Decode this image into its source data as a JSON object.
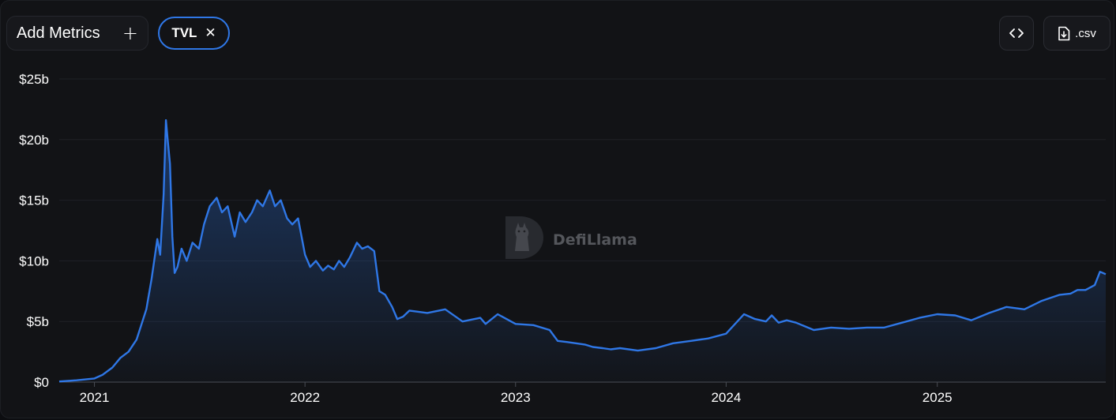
{
  "toolbar": {
    "add_metrics_label": "Add Metrics",
    "add_icon": "plus-icon",
    "metric_chip_label": "TVL",
    "remove_icon": "close-icon",
    "embed_icon": "code-icon",
    "csv_label": ".csv",
    "csv_icon": "file-download-icon"
  },
  "watermark": {
    "text": "DefiLlama",
    "icon": "llama-logo-icon"
  },
  "colors": {
    "line": "#2f77e6",
    "background": "#121316"
  },
  "chart_data": {
    "type": "area",
    "title": "",
    "xlabel": "",
    "ylabel": "",
    "ylim": [
      0,
      25
    ],
    "yunit": "billions USD",
    "yticks": [
      0,
      5,
      10,
      15,
      20,
      25
    ],
    "ytick_labels": [
      "$0",
      "$5b",
      "$10b",
      "$15b",
      "$20b",
      "$25b"
    ],
    "xlim": [
      "2020-11-01",
      "2025-10-20"
    ],
    "xticks": [
      "2021-01-01",
      "2022-01-01",
      "2023-01-01",
      "2024-01-01",
      "2025-01-01"
    ],
    "xtick_labels": [
      "2021",
      "2022",
      "2023",
      "2024",
      "2025"
    ],
    "grid": "horizontal",
    "legend": "none",
    "series": [
      {
        "x": [
          "2020-11-01",
          "2020-12-01",
          "2021-01-01",
          "2021-01-15",
          "2021-02-01",
          "2021-02-15",
          "2021-03-01",
          "2021-03-15",
          "2021-04-01",
          "2021-04-10",
          "2021-04-20",
          "2021-04-25",
          "2021-05-01",
          "2021-05-05",
          "2021-05-08",
          "2021-05-12",
          "2021-05-16",
          "2021-05-20",
          "2021-05-25",
          "2021-06-01",
          "2021-06-10",
          "2021-06-20",
          "2021-07-01",
          "2021-07-10",
          "2021-07-20",
          "2021-08-01",
          "2021-08-10",
          "2021-08-20",
          "2021-09-01",
          "2021-09-10",
          "2021-09-20",
          "2021-10-01",
          "2021-10-10",
          "2021-10-20",
          "2021-11-01",
          "2021-11-10",
          "2021-11-20",
          "2021-12-01",
          "2021-12-10",
          "2021-12-20",
          "2022-01-01",
          "2022-01-10",
          "2022-01-20",
          "2022-02-01",
          "2022-02-10",
          "2022-02-20",
          "2022-03-01",
          "2022-03-10",
          "2022-03-20",
          "2022-04-01",
          "2022-04-10",
          "2022-04-20",
          "2022-05-01",
          "2022-05-10",
          "2022-05-20",
          "2022-06-01",
          "2022-06-10",
          "2022-06-20",
          "2022-07-01",
          "2022-08-01",
          "2022-09-01",
          "2022-10-01",
          "2022-11-01",
          "2022-11-10",
          "2022-12-01",
          "2023-01-01",
          "2023-02-01",
          "2023-03-01",
          "2023-03-15",
          "2023-04-01",
          "2023-05-01",
          "2023-05-15",
          "2023-06-01",
          "2023-06-15",
          "2023-07-01",
          "2023-08-01",
          "2023-09-01",
          "2023-10-01",
          "2023-11-01",
          "2023-12-01",
          "2024-01-01",
          "2024-02-01",
          "2024-02-20",
          "2024-03-10",
          "2024-03-20",
          "2024-04-01",
          "2024-04-15",
          "2024-05-01",
          "2024-06-01",
          "2024-07-01",
          "2024-08-01",
          "2024-09-01",
          "2024-10-01",
          "2024-11-01",
          "2024-12-01",
          "2025-01-01",
          "2025-02-01",
          "2025-03-01",
          "2025-04-01",
          "2025-05-01",
          "2025-06-01",
          "2025-07-01",
          "2025-08-01",
          "2025-08-20",
          "2025-09-01",
          "2025-09-15",
          "2025-10-01",
          "2025-10-10",
          "2025-10-20"
        ],
        "values": [
          0.05,
          0.15,
          0.3,
          0.6,
          1.2,
          2.0,
          2.5,
          3.5,
          6.0,
          8.5,
          11.8,
          10.5,
          15.5,
          21.6,
          20.0,
          18.0,
          12.0,
          9.0,
          9.5,
          11.0,
          10.0,
          11.5,
          11.0,
          13.0,
          14.5,
          15.2,
          14.0,
          14.5,
          12.0,
          14.0,
          13.2,
          14.0,
          15.0,
          14.5,
          15.8,
          14.5,
          15.0,
          13.5,
          13.0,
          13.5,
          10.5,
          9.5,
          10.0,
          9.2,
          9.6,
          9.3,
          10.0,
          9.5,
          10.3,
          11.5,
          11.0,
          11.2,
          10.8,
          7.5,
          7.2,
          6.2,
          5.2,
          5.4,
          5.9,
          5.7,
          6.0,
          5.0,
          5.3,
          4.8,
          5.6,
          4.8,
          4.7,
          4.3,
          3.4,
          3.3,
          3.1,
          2.9,
          2.8,
          2.7,
          2.8,
          2.6,
          2.8,
          3.2,
          3.4,
          3.6,
          4.0,
          5.6,
          5.2,
          5.0,
          5.5,
          4.9,
          5.1,
          4.9,
          4.3,
          4.5,
          4.4,
          4.5,
          4.5,
          4.9,
          5.3,
          5.6,
          5.5,
          5.1,
          5.7,
          6.2,
          6.0,
          6.7,
          7.2,
          7.3,
          7.6,
          7.6,
          8.0,
          9.1,
          8.9
        ]
      }
    ]
  }
}
